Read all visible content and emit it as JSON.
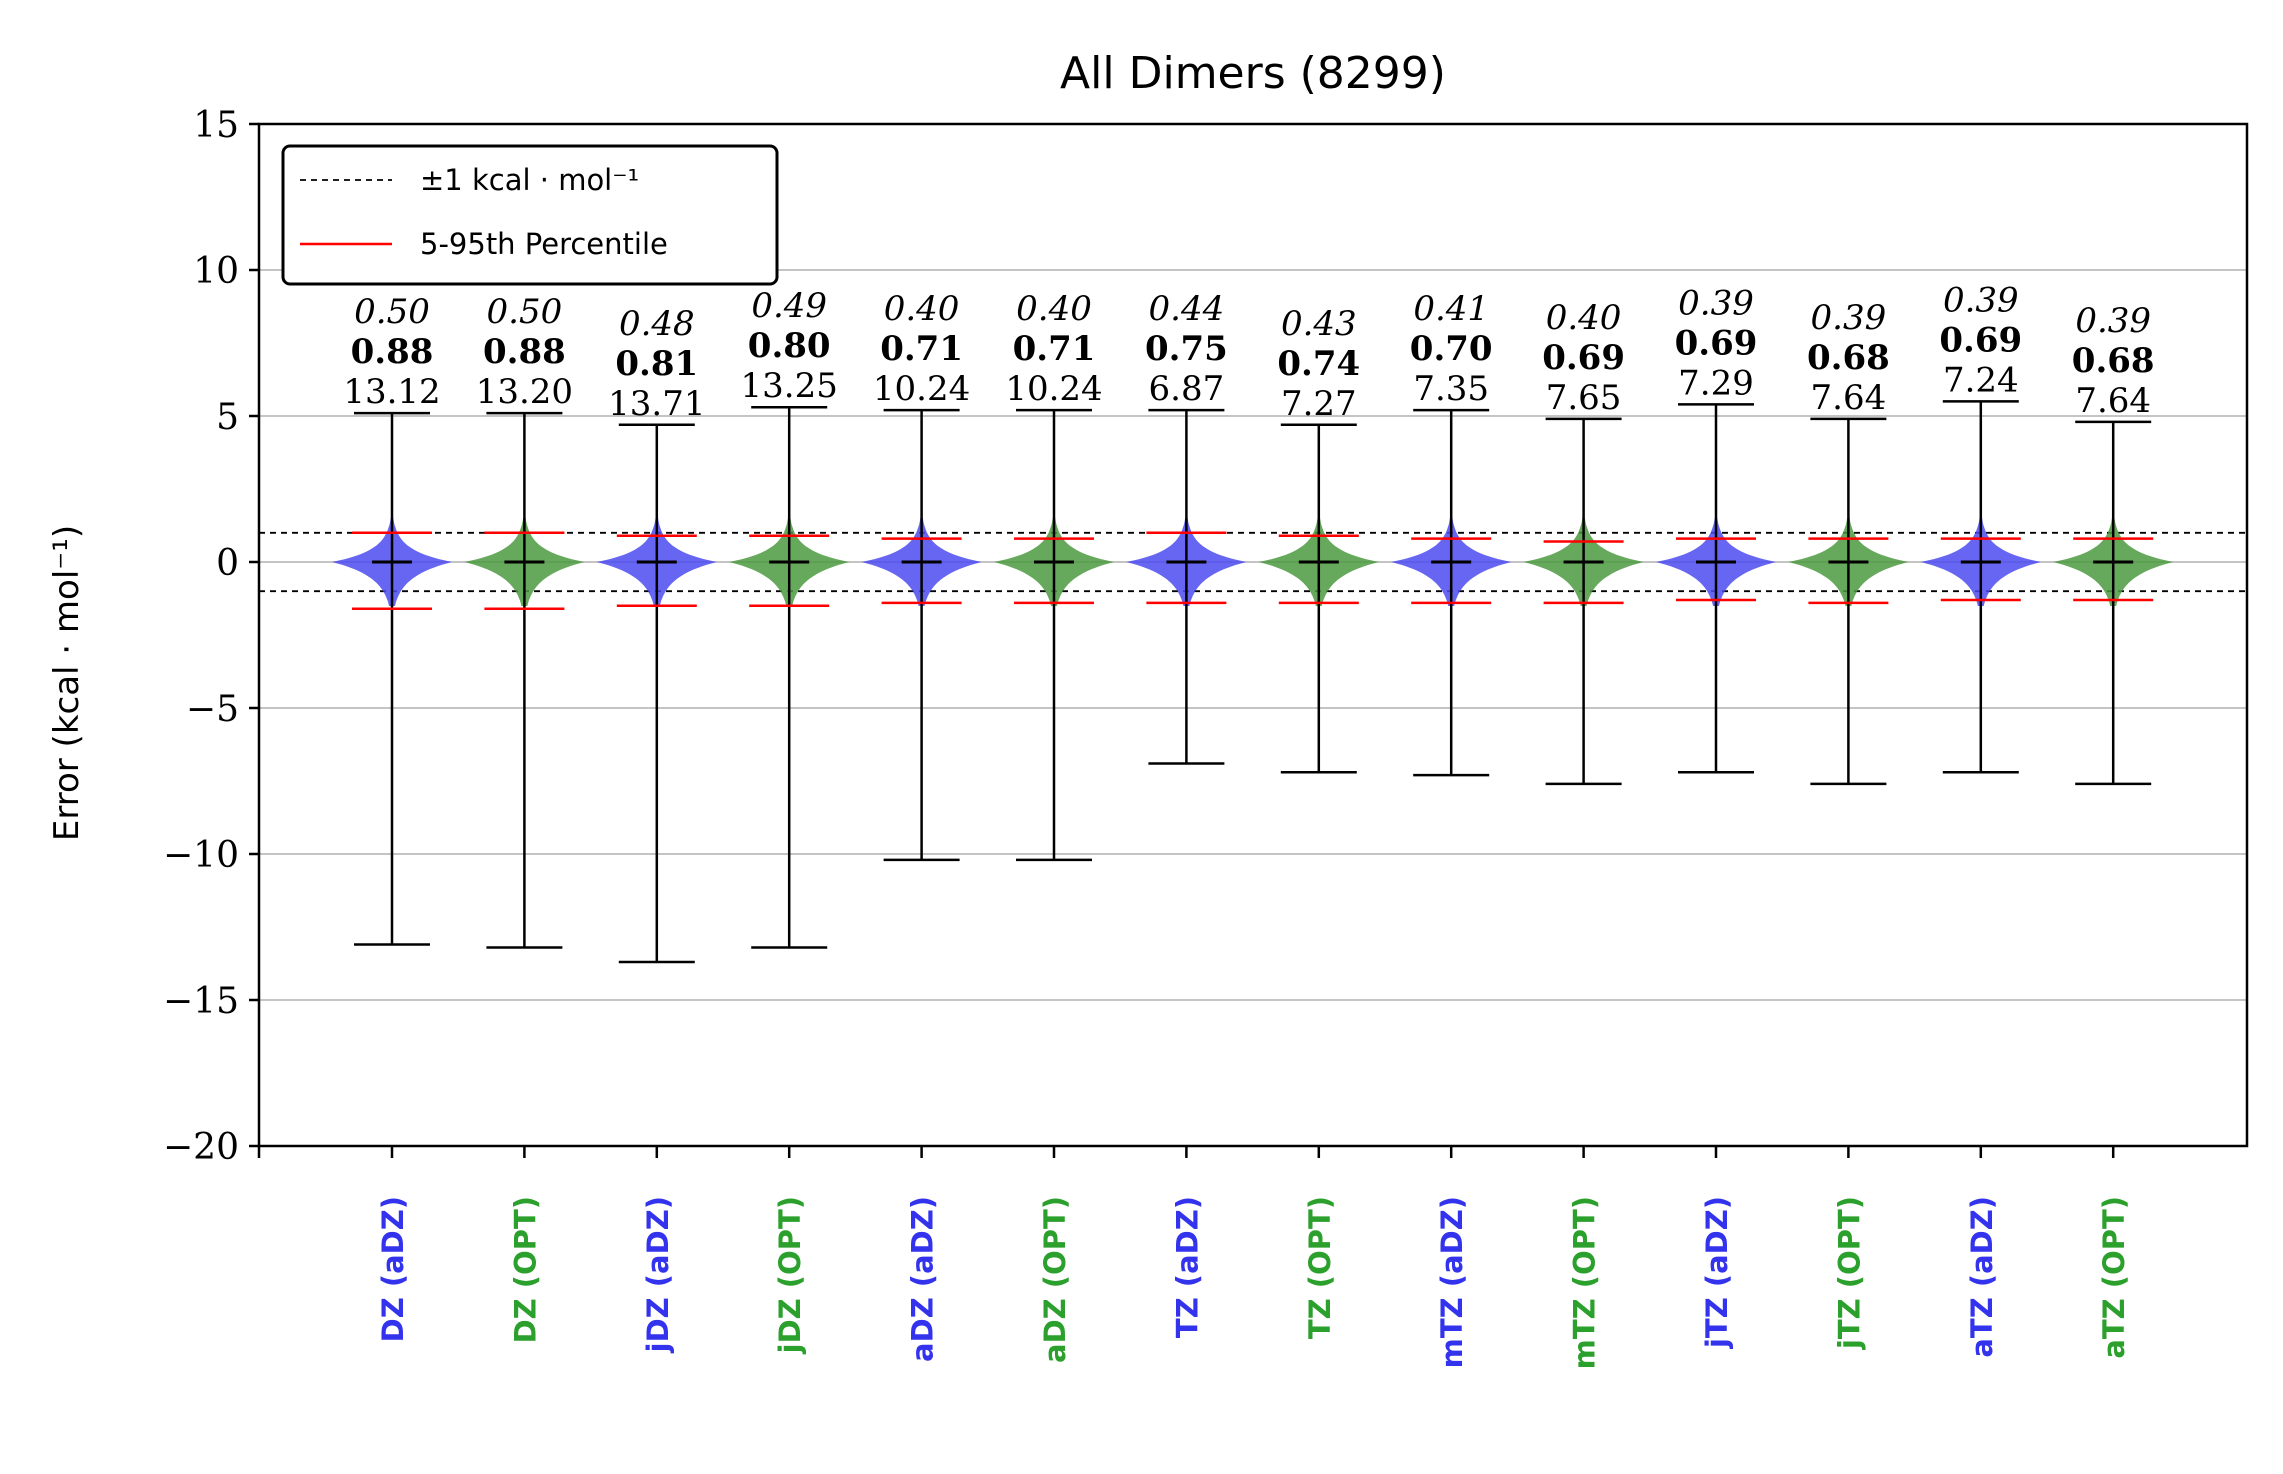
{
  "chart_data": {
    "type": "violin",
    "title": "All Dimers (8299)",
    "ylabel": "Error (kcal · mol⁻¹)",
    "xlabel": "",
    "ylim": [
      -20,
      15
    ],
    "yticks": [
      15,
      10,
      5,
      0,
      -5,
      -10,
      -15,
      -20
    ],
    "ytick_labels": [
      "15",
      "10",
      "5",
      "0",
      "−5",
      "−10",
      "−15",
      "−20"
    ],
    "grid": "horizontal",
    "legend": {
      "placement": "upper-left",
      "entries": [
        {
          "label": "±1 kcal · mol⁻¹",
          "style": "dashed",
          "color": "#000000"
        },
        {
          "label": "5-95th Percentile",
          "style": "solid",
          "color": "#ff0000"
        }
      ]
    },
    "reference_lines": [
      1,
      -1
    ],
    "colors": {
      "aDZ": "#3333ee",
      "OPT": "#2ca02c",
      "violin_aDZ": "#4b4bf0",
      "violin_OPT": "#4c9a3f",
      "percentile": "#ff0000",
      "whisker": "#000000"
    },
    "categories": [
      "DZ (aDZ)",
      "DZ (OPT)",
      "jDZ (aDZ)",
      "jDZ (OPT)",
      "aDZ (aDZ)",
      "aDZ (OPT)",
      "TZ (aDZ)",
      "TZ (OPT)",
      "mTZ (aDZ)",
      "mTZ (OPT)",
      "jTZ (aDZ)",
      "jTZ (OPT)",
      "aTZ (aDZ)",
      "aTZ (OPT)"
    ],
    "series_group": [
      "aDZ",
      "OPT",
      "aDZ",
      "OPT",
      "aDZ",
      "OPT",
      "aDZ",
      "OPT",
      "aDZ",
      "OPT",
      "aDZ",
      "OPT",
      "aDZ",
      "OPT"
    ],
    "stats_italic": [
      "0.50",
      "0.50",
      "0.48",
      "0.49",
      "0.40",
      "0.40",
      "0.44",
      "0.43",
      "0.41",
      "0.40",
      "0.39",
      "0.39",
      "0.39",
      "0.39"
    ],
    "stats_bold": [
      "0.88",
      "0.88",
      "0.81",
      "0.80",
      "0.71",
      "0.71",
      "0.75",
      "0.74",
      "0.70",
      "0.69",
      "0.69",
      "0.68",
      "0.69",
      "0.68"
    ],
    "stats_regular": [
      "13.12",
      "13.20",
      "13.71",
      "13.25",
      "10.24",
      "10.24",
      "6.87",
      "7.27",
      "7.35",
      "7.65",
      "7.29",
      "7.64",
      "7.24",
      "7.64"
    ],
    "max": [
      5.1,
      5.1,
      4.7,
      5.3,
      5.2,
      5.2,
      5.2,
      4.7,
      5.2,
      4.9,
      5.4,
      4.9,
      5.5,
      4.8
    ],
    "min": [
      -13.1,
      -13.2,
      -13.7,
      -13.2,
      -10.2,
      -10.2,
      -6.9,
      -7.2,
      -7.3,
      -7.6,
      -7.2,
      -7.6,
      -7.2,
      -7.6
    ],
    "median": [
      0,
      0,
      0,
      0,
      0,
      0,
      0,
      0,
      0,
      0,
      0,
      0,
      0,
      0
    ],
    "p95": [
      1.0,
      1.0,
      0.9,
      0.9,
      0.8,
      0.8,
      1.0,
      0.9,
      0.8,
      0.7,
      0.8,
      0.8,
      0.8,
      0.8
    ],
    "p5": [
      -1.6,
      -1.6,
      -1.5,
      -1.5,
      -1.4,
      -1.4,
      -1.4,
      -1.4,
      -1.4,
      -1.4,
      -1.3,
      -1.4,
      -1.3,
      -1.3
    ]
  }
}
